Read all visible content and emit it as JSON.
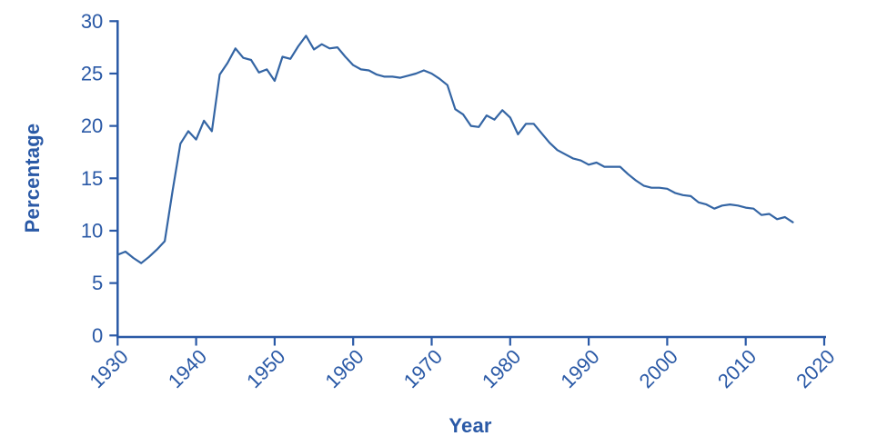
{
  "chart_data": {
    "type": "line",
    "title": "",
    "xlabel": "Year",
    "ylabel": "Percentage",
    "x_first": 1930,
    "x_step": 1,
    "values": [
      7.7,
      8.0,
      7.4,
      6.9,
      7.5,
      8.2,
      9.0,
      13.8,
      18.3,
      19.5,
      18.7,
      20.5,
      19.5,
      24.9,
      26.0,
      27.4,
      26.5,
      26.3,
      25.1,
      25.4,
      24.3,
      26.6,
      26.4,
      27.6,
      28.6,
      27.3,
      27.8,
      27.4,
      27.5,
      26.6,
      25.8,
      25.4,
      25.3,
      24.9,
      24.7,
      24.7,
      24.6,
      24.8,
      25.0,
      25.3,
      25.0,
      24.5,
      23.9,
      21.6,
      21.1,
      20.0,
      19.9,
      21.0,
      20.6,
      21.5,
      20.8,
      19.2,
      20.2,
      20.2,
      19.3,
      18.4,
      17.7,
      17.3,
      16.9,
      16.7,
      16.3,
      16.5,
      16.1,
      16.1,
      16.1,
      15.4,
      14.8,
      14.3,
      14.1,
      14.1,
      14.0,
      13.6,
      13.4,
      13.3,
      12.7,
      12.5,
      12.1,
      12.4,
      12.5,
      12.4,
      12.2,
      12.1,
      11.5,
      11.6,
      11.1,
      11.3,
      10.8
    ],
    "x_ticks": [
      1930,
      1940,
      1950,
      1960,
      1970,
      1980,
      1990,
      2000,
      2010,
      2020
    ],
    "y_ticks": [
      0,
      5,
      10,
      15,
      20,
      25,
      30
    ],
    "xlim": [
      1930,
      2020
    ],
    "ylim": [
      0,
      30
    ],
    "grid": false,
    "legend": null,
    "colors": {
      "line": "#3465a4",
      "axis": "#2a59a6",
      "tick_text": "#2a59a6",
      "title_text": "#2a59a6",
      "background": "#ffffff"
    }
  }
}
